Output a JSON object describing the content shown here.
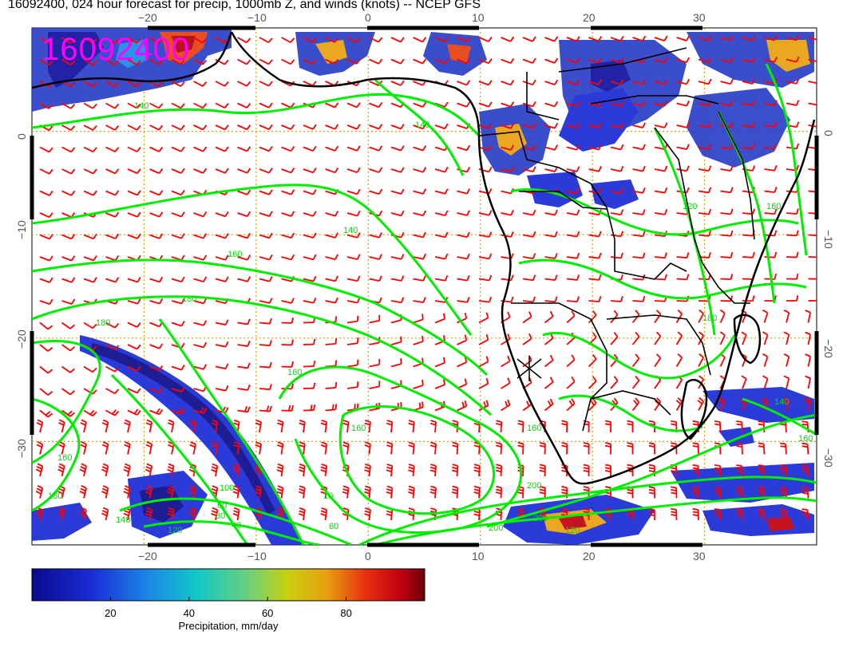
{
  "title": "16092400, 024 hour forecast for precip, 1000mb Z, and winds (knots) -- NCEP GFS",
  "stamp": "16092400",
  "map": {
    "lon_range": [
      -30,
      40
    ],
    "lat_range": [
      -40,
      10
    ],
    "lon_ticks": [
      "−20",
      "−10",
      "0",
      "10",
      "20",
      "30"
    ],
    "lat_ticks": [
      "0",
      "−10",
      "−20",
      "−30"
    ],
    "contour_labels": [
      "140",
      "140",
      "140",
      "160",
      "180",
      "180",
      "160",
      "160",
      "160",
      "160",
      "160",
      "160",
      "140",
      "200",
      "200",
      "200",
      "120",
      "140",
      "120",
      "80",
      "40",
      "60",
      "100",
      "60",
      "10",
      "180",
      "120",
      "160"
    ],
    "colors": {
      "coast": "#000000",
      "contour": "#00ee00",
      "barb": "#ff0000",
      "grid": "#d4a400",
      "stamp": "#ff00ff"
    }
  },
  "colorbar": {
    "ticks": [
      "20",
      "40",
      "60",
      "80"
    ],
    "tick_values": [
      20,
      40,
      60,
      80
    ],
    "range": [
      0,
      100
    ],
    "label": "Precipitation, mm/day"
  }
}
